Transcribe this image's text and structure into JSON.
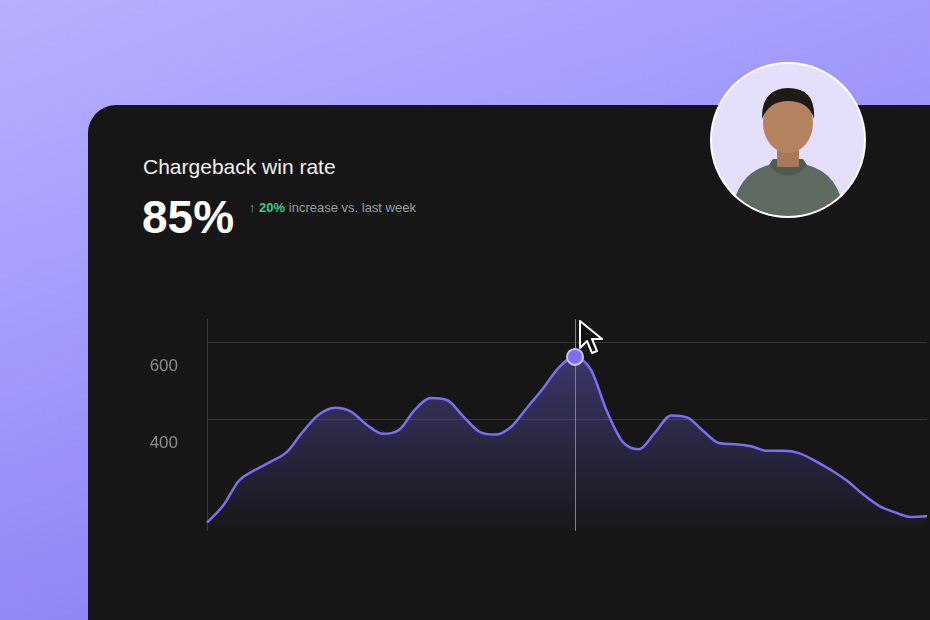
{
  "chart_data": {
    "type": "line",
    "title": "Chargeback win rate",
    "annotations": [
      "85%",
      "↑ 20%",
      "increase vs. last week"
    ],
    "categories": [
      null,
      null,
      null,
      null,
      null,
      null,
      null,
      null,
      null,
      null,
      null,
      null,
      null,
      null,
      null,
      null,
      null,
      null,
      null,
      null,
      null,
      null,
      null,
      null,
      null,
      null,
      null,
      null,
      null,
      null,
      null,
      null,
      null,
      null,
      null,
      null,
      null,
      null,
      null,
      null,
      null,
      null,
      null,
      null,
      null,
      null
    ],
    "values": [
      131,
      175,
      240,
      268,
      290,
      315,
      368,
      412,
      430,
      420,
      385,
      362,
      372,
      425,
      455,
      450,
      408,
      368,
      360,
      380,
      430,
      480,
      535,
      562,
      528,
      420,
      340,
      322,
      365,
      410,
      405,
      370,
      338,
      335,
      330,
      318,
      318,
      312,
      292,
      268,
      240,
      205,
      175,
      158,
      146,
      148
    ],
    "color": "#7b6ef6",
    "ylim": [
      110,
      660
    ],
    "yticks": [
      400,
      600
    ],
    "grid": true,
    "tick_labels": "y"
  }
}
